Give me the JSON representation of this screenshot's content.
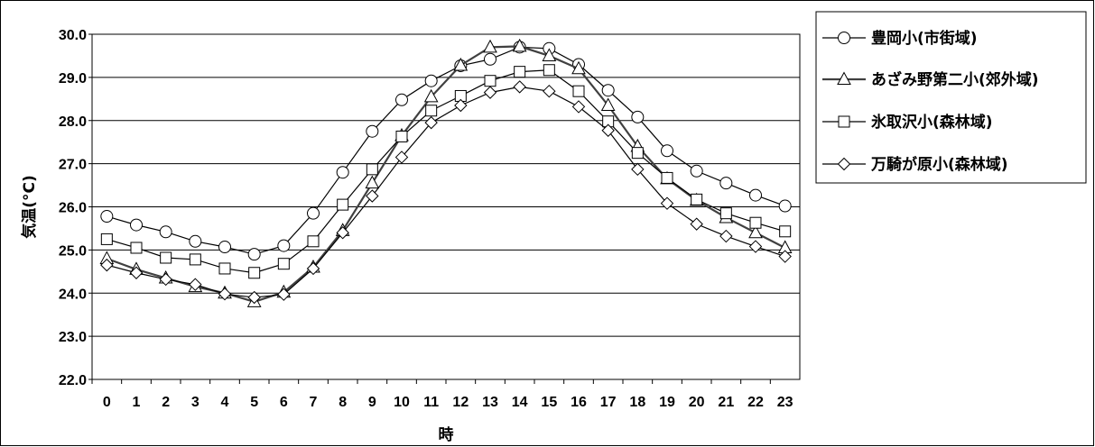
{
  "chart_data": {
    "type": "line",
    "xlabel": "時",
    "ylabel": "気温(°C)",
    "ylim": [
      22.0,
      30.0
    ],
    "y_ticks": [
      "22.0",
      "23.0",
      "24.0",
      "25.0",
      "26.0",
      "27.0",
      "28.0",
      "29.0",
      "30.0"
    ],
    "categories": [
      "0",
      "1",
      "2",
      "3",
      "4",
      "5",
      "6",
      "7",
      "8",
      "9",
      "10",
      "11",
      "12",
      "13",
      "14",
      "15",
      "16",
      "17",
      "18",
      "19",
      "20",
      "21",
      "22",
      "23"
    ],
    "grid": true,
    "legend_position": "right",
    "series": [
      {
        "name": "豊岡小(市街域)",
        "marker": "circle",
        "color": "#000000",
        "values": [
          25.78,
          25.58,
          25.42,
          25.2,
          25.07,
          24.9,
          25.1,
          25.85,
          26.8,
          27.75,
          28.48,
          28.92,
          29.27,
          29.42,
          29.7,
          29.67,
          29.3,
          28.7,
          28.08,
          27.3,
          26.83,
          26.55,
          26.27,
          26.02
        ]
      },
      {
        "name": "あざみ野第二小(郊外域)",
        "marker": "triangle",
        "color": "#404040",
        "values": [
          24.8,
          24.55,
          24.35,
          24.15,
          24.0,
          23.8,
          24.02,
          24.6,
          25.45,
          26.55,
          27.65,
          28.55,
          29.28,
          29.7,
          29.72,
          29.5,
          29.2,
          28.35,
          27.4,
          26.65,
          26.15,
          25.75,
          25.4,
          25.05
        ]
      },
      {
        "name": "氷取沢小(森林域)",
        "marker": "square",
        "color": "#000000",
        "values": [
          25.25,
          25.05,
          24.82,
          24.78,
          24.57,
          24.47,
          24.68,
          25.2,
          26.05,
          26.87,
          27.63,
          28.23,
          28.57,
          28.92,
          29.13,
          29.17,
          28.68,
          27.98,
          27.25,
          26.67,
          26.17,
          25.85,
          25.63,
          25.43
        ]
      },
      {
        "name": "万騎が原小(森林域)",
        "marker": "diamond",
        "color": "#000000",
        "values": [
          24.65,
          24.47,
          24.32,
          24.2,
          23.98,
          23.9,
          23.97,
          24.57,
          25.4,
          26.25,
          27.15,
          27.95,
          28.35,
          28.65,
          28.78,
          28.68,
          28.32,
          27.77,
          26.87,
          26.08,
          25.6,
          25.32,
          25.08,
          24.85
        ]
      }
    ]
  }
}
